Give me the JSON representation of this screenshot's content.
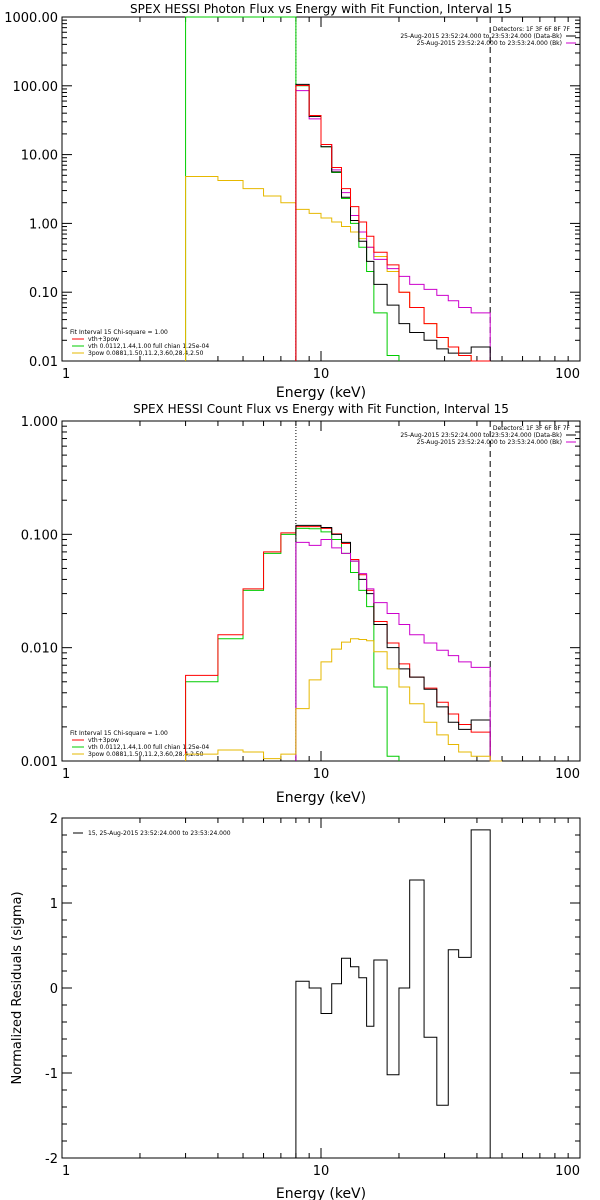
{
  "chart_data": [
    {
      "type": "line",
      "title": "SPEX HESSI Photon Flux vs Energy with Fit Function, Interval 15",
      "xlabel": "Energy (keV)",
      "ylabel": "",
      "xscale": "log",
      "yscale": "log",
      "xlim": [
        1,
        100
      ],
      "ylim": [
        0.01,
        1000
      ],
      "x_ticks": [
        "1",
        "10",
        "100"
      ],
      "y_ticks": [
        "1000.00",
        "100.00",
        "10.00",
        "1.00",
        "0.10",
        "0.01"
      ],
      "colors": {
        "data": "#000000",
        "total": "#ff0000",
        "vth": "#00cc00",
        "3pow": "#e6b800",
        "bk": "#cc00cc"
      },
      "vlines": [
        {
          "x": 8.0,
          "style": "dotted"
        },
        {
          "x": 45.0,
          "style": "dashed"
        }
      ],
      "legend_top": {
        "lines": [
          "Detectors: 1F 3F 6F 8F 7F",
          "25-Aug-2015 23:52:24.000 to 23:53:24.000 (Data-Bk)",
          "25-Aug-2015 23:52:24.000 to 23:53:24.000 (Bk)"
        ],
        "colors": [
          "",
          "#000000",
          "#cc00cc"
        ]
      },
      "legend_bottom": {
        "lines": [
          "Fit Interval 15   Chi-square = 1.00",
          "vth+3pow",
          "vth 0.0112,1.44,1.00  full chian 1.25e-04",
          "3pow 0.0881,1.50,11.2,3.60,28.4,2.50"
        ],
        "colors": [
          "",
          "#ff0000",
          "#00cc00",
          "#e6b800"
        ]
      },
      "series": [
        {
          "key": "vth",
          "edges": [
            3.0,
            8.0,
            9.0,
            10.0,
            11.0,
            12.0,
            13.0,
            14.0,
            15.0,
            16.0,
            18.0,
            20.0
          ],
          "values": [
            1000.0,
            100.0,
            36.0,
            13.0,
            5.5,
            2.3,
            1.0,
            0.45,
            0.2,
            0.05,
            0.012
          ]
        },
        {
          "key": "3pow",
          "edges": [
            3.0,
            4.0,
            5.0,
            6.0,
            7.0,
            8.0,
            9.0,
            10.0,
            11.0,
            12.0,
            13.0,
            14.0,
            15.0,
            16.0,
            18.0,
            20.0,
            22.0,
            25.0,
            28.0,
            31.0,
            34.0,
            38.0,
            45.0
          ],
          "values": [
            4.8,
            4.2,
            3.2,
            2.5,
            2.0,
            1.6,
            1.4,
            1.2,
            1.05,
            0.9,
            0.75,
            0.6,
            0.45,
            0.33,
            0.2,
            0.1,
            0.06,
            0.035,
            0.022,
            0.016,
            0.012,
            0.01
          ]
        },
        {
          "key": "bk",
          "edges": [
            8.0,
            9.0,
            10.0,
            11.0,
            12.0,
            13.0,
            14.0,
            15.0,
            16.0,
            18.0,
            20.0,
            22.0,
            25.0,
            28.0,
            31.0,
            34.0,
            38.0,
            45.0
          ],
          "values": [
            85.0,
            33.0,
            14.0,
            6.0,
            2.8,
            1.3,
            0.75,
            0.45,
            0.3,
            0.22,
            0.17,
            0.13,
            0.11,
            0.09,
            0.075,
            0.06,
            0.05
          ]
        },
        {
          "key": "data",
          "edges": [
            8.0,
            9.0,
            10.0,
            11.0,
            12.0,
            13.0,
            14.0,
            15.0,
            16.0,
            18.0,
            20.0,
            22.0,
            25.0,
            28.0,
            31.0,
            34.0,
            38.0,
            45.0
          ],
          "values": [
            105.0,
            36.0,
            13.0,
            5.6,
            2.4,
            1.1,
            0.55,
            0.28,
            0.13,
            0.065,
            0.035,
            0.026,
            0.02,
            0.015,
            0.013,
            0.013,
            0.016
          ]
        },
        {
          "key": "total",
          "edges": [
            8.0,
            9.0,
            10.0,
            11.0,
            12.0,
            13.0,
            14.0,
            15.0,
            16.0,
            18.0,
            20.0,
            22.0,
            25.0,
            28.0,
            31.0,
            34.0,
            38.0,
            45.0
          ],
          "values": [
            101.0,
            37.0,
            14.0,
            6.5,
            3.2,
            1.75,
            1.05,
            0.65,
            0.38,
            0.25,
            0.1,
            0.06,
            0.035,
            0.022,
            0.016,
            0.012,
            0.01
          ]
        }
      ]
    },
    {
      "type": "line",
      "title": "SPEX HESSI Count Flux vs Energy with Fit Function, Interval 15",
      "xlabel": "Energy (keV)",
      "ylabel": "",
      "xscale": "log",
      "yscale": "log",
      "xlim": [
        1,
        100
      ],
      "ylim": [
        0.001,
        1.0
      ],
      "x_ticks": [
        "1",
        "10",
        "100"
      ],
      "y_ticks": [
        "1.000",
        "0.100",
        "0.010",
        "0.001"
      ],
      "colors": {
        "data": "#000000",
        "total": "#ff0000",
        "vth": "#00cc00",
        "3pow": "#e6b800",
        "bk": "#cc00cc"
      },
      "vlines": [
        {
          "x": 8.0,
          "style": "dotted"
        },
        {
          "x": 45.0,
          "style": "dashed"
        }
      ],
      "legend_top": {
        "lines": [
          "Detectors: 1F 3F 6F 8F 7F",
          "25-Aug-2015 23:52:24.000 to 23:53:24.000 (Data-Bk)",
          "25-Aug-2015 23:52:24.000 to 23:53:24.000 (Bk)"
        ],
        "colors": [
          "",
          "#000000",
          "#cc00cc"
        ]
      },
      "legend_bottom": {
        "lines": [
          "Fit Interval 15   Chi-square = 1.00",
          "vth+3pow",
          "vth 0.0112,1.44,1.00  full chian 1.25e-04",
          "3pow 0.0881,1.50,11.2,3.60,28.4,2.50"
        ],
        "colors": [
          "",
          "#ff0000",
          "#00cc00",
          "#e6b800"
        ]
      },
      "series": [
        {
          "key": "vth",
          "edges": [
            3.0,
            4.0,
            5.0,
            6.0,
            7.0,
            8.0,
            9.0,
            10.0,
            11.0,
            12.0,
            13.0,
            14.0,
            15.0,
            16.0,
            18.0,
            20.0
          ],
          "values": [
            0.005,
            0.012,
            0.032,
            0.068,
            0.1,
            0.113,
            0.112,
            0.105,
            0.09,
            0.068,
            0.046,
            0.032,
            0.023,
            0.0045,
            0.0011
          ]
        },
        {
          "key": "total",
          "edges": [
            3.0,
            4.0,
            5.0,
            6.0,
            7.0,
            8.0,
            9.0,
            10.0,
            11.0,
            12.0,
            13.0,
            14.0,
            15.0,
            16.0,
            18.0,
            20.0,
            22.0,
            25.0,
            28.0,
            31.0,
            34.0,
            38.0,
            45.0
          ],
          "values": [
            0.0057,
            0.013,
            0.033,
            0.07,
            0.103,
            0.117,
            0.117,
            0.113,
            0.101,
            0.083,
            0.06,
            0.044,
            0.032,
            0.017,
            0.011,
            0.0072,
            0.0055,
            0.0044,
            0.0033,
            0.0026,
            0.0021,
            0.0018
          ]
        },
        {
          "key": "data",
          "edges": [
            8.0,
            9.0,
            10.0,
            11.0,
            12.0,
            13.0,
            14.0,
            15.0,
            16.0,
            18.0,
            20.0,
            22.0,
            25.0,
            28.0,
            31.0,
            34.0,
            38.0,
            45.0
          ],
          "values": [
            0.12,
            0.12,
            0.115,
            0.1,
            0.085,
            0.058,
            0.04,
            0.03,
            0.016,
            0.01,
            0.0065,
            0.0055,
            0.0043,
            0.003,
            0.0022,
            0.0019,
            0.0023
          ]
        },
        {
          "key": "bk",
          "edges": [
            8.0,
            9.0,
            10.0,
            11.0,
            12.0,
            13.0,
            14.0,
            15.0,
            16.0,
            18.0,
            20.0,
            22.0,
            25.0,
            28.0,
            31.0,
            34.0,
            38.0,
            45.0
          ],
          "values": [
            0.085,
            0.08,
            0.09,
            0.076,
            0.068,
            0.058,
            0.045,
            0.033,
            0.025,
            0.02,
            0.016,
            0.013,
            0.011,
            0.0095,
            0.0085,
            0.0075,
            0.0067
          ]
        },
        {
          "key": "3pow",
          "edges": [
            3.0,
            4.0,
            5.0,
            6.0,
            7.0,
            8.0,
            9.0,
            10.0,
            11.0,
            12.0,
            13.0,
            14.0,
            15.0,
            16.0,
            18.0,
            20.0,
            22.0,
            25.0,
            28.0,
            31.0,
            34.0,
            38.0,
            45.0,
            50.0
          ],
          "values": [
            0.00115,
            0.00125,
            0.0012,
            0.00105,
            0.00115,
            0.0029,
            0.0052,
            0.0075,
            0.0097,
            0.0112,
            0.012,
            0.0118,
            0.0115,
            0.0092,
            0.0065,
            0.0045,
            0.0032,
            0.0022,
            0.0017,
            0.0014,
            0.0012,
            0.0011,
            0.001
          ]
        }
      ]
    },
    {
      "type": "line",
      "title": "",
      "xlabel": "Energy (keV)",
      "ylabel": "Normalized Residuals (sigma)",
      "xscale": "log",
      "yscale": "linear",
      "xlim": [
        1,
        100
      ],
      "ylim": [
        -2,
        2
      ],
      "x_ticks": [
        "1",
        "10",
        "100"
      ],
      "y_ticks": [
        "2",
        "1",
        "0",
        "-1",
        "-2"
      ],
      "legend": "15, 25-Aug-2015 23:52:24.000 to 23:53:24.000",
      "series": [
        {
          "key": "residuals",
          "edges": [
            8.0,
            9.0,
            10.0,
            11.0,
            12.0,
            13.0,
            14.0,
            15.0,
            16.0,
            18.0,
            20.0,
            22.0,
            25.0,
            28.0,
            31.0,
            34.0,
            38.0,
            45.0
          ],
          "values": [
            0.08,
            0.0,
            -0.3,
            0.05,
            0.35,
            0.25,
            0.12,
            -0.45,
            0.33,
            -1.02,
            0.0,
            1.27,
            -0.58,
            -1.38,
            0.45,
            0.36,
            1.86
          ]
        }
      ]
    }
  ]
}
